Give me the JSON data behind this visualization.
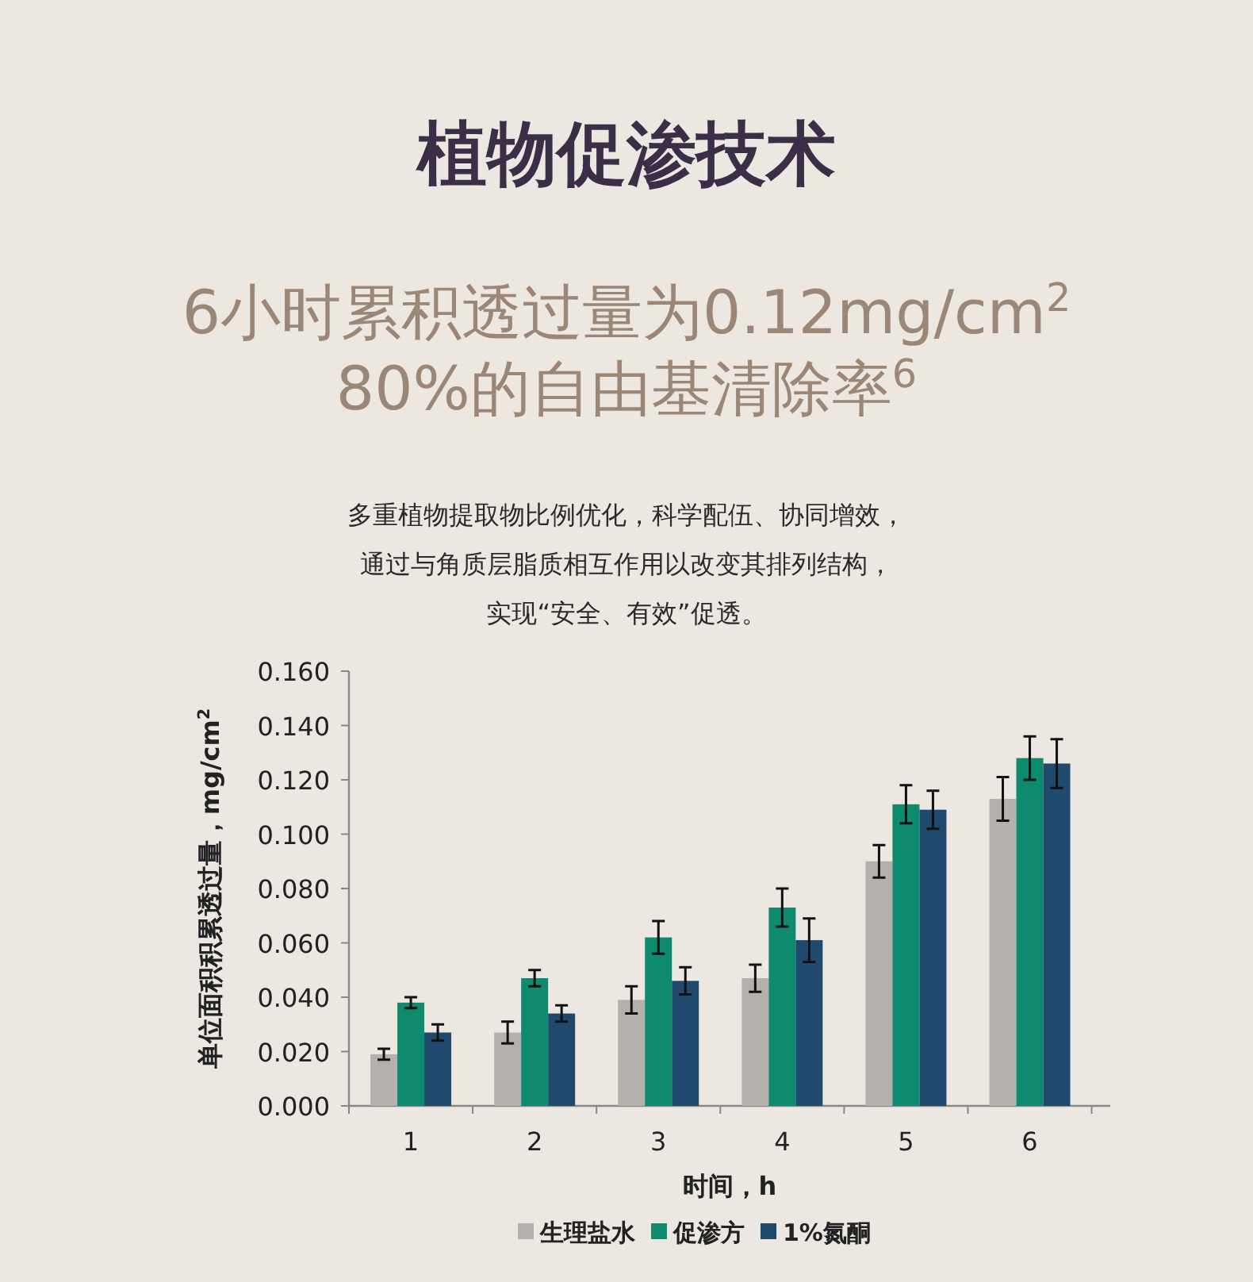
{
  "chart_data": {
    "type": "bar",
    "title": "植物促渗技术",
    "subtitle": "6小时累积透过量为0.12mg/cm$^{2}$",
    "annotations": [
      "80%的自由基清除率$^{6}$",
      "多重植物提取物比例优化，科学配伍、协同增效，",
      "通过与角质层脂质相互作用以改变其排列结构，",
      "实现“安全、有效”促透。"
    ],
    "xlabel": "时间，h",
    "ylabel": "单位面积积累透过量，mg/cm$^{2}$",
    "categories": [
      "1",
      "2",
      "3",
      "4",
      "5",
      "6"
    ],
    "series": [
      {
        "name": "生理盐水",
        "color": "#b4b1ad",
        "values": [
          0.019,
          0.027,
          0.039,
          0.047,
          0.09,
          0.113
        ],
        "errors": [
          0.002,
          0.004,
          0.005,
          0.005,
          0.006,
          0.008
        ]
      },
      {
        "name": "促渗方",
        "color": "#0e8a6e",
        "values": [
          0.038,
          0.047,
          0.062,
          0.073,
          0.111,
          0.128
        ],
        "errors": [
          0.002,
          0.003,
          0.006,
          0.007,
          0.007,
          0.008
        ]
      },
      {
        "name": "1%氮酮",
        "color": "#1f4a6e",
        "values": [
          0.027,
          0.034,
          0.046,
          0.061,
          0.109,
          0.126
        ],
        "errors": [
          0.003,
          0.003,
          0.005,
          0.008,
          0.007,
          0.009
        ]
      }
    ],
    "ylim": [
      0,
      0.16
    ],
    "yticks": [
      {
        "value": 0,
        "label": "0.000"
      },
      {
        "value": 0.02,
        "label": "0.020"
      },
      {
        "value": 0.04,
        "label": "0.040"
      },
      {
        "value": 0.06,
        "label": "0.060"
      },
      {
        "value": 0.08,
        "label": "0.080"
      },
      {
        "value": 0.1,
        "label": "0.100"
      },
      {
        "value": 0.12,
        "label": "0.120"
      },
      {
        "value": 0.14,
        "label": "0.140"
      },
      {
        "value": 0.16,
        "label": "0.160"
      }
    ],
    "grid": false,
    "legend": "bottom"
  }
}
